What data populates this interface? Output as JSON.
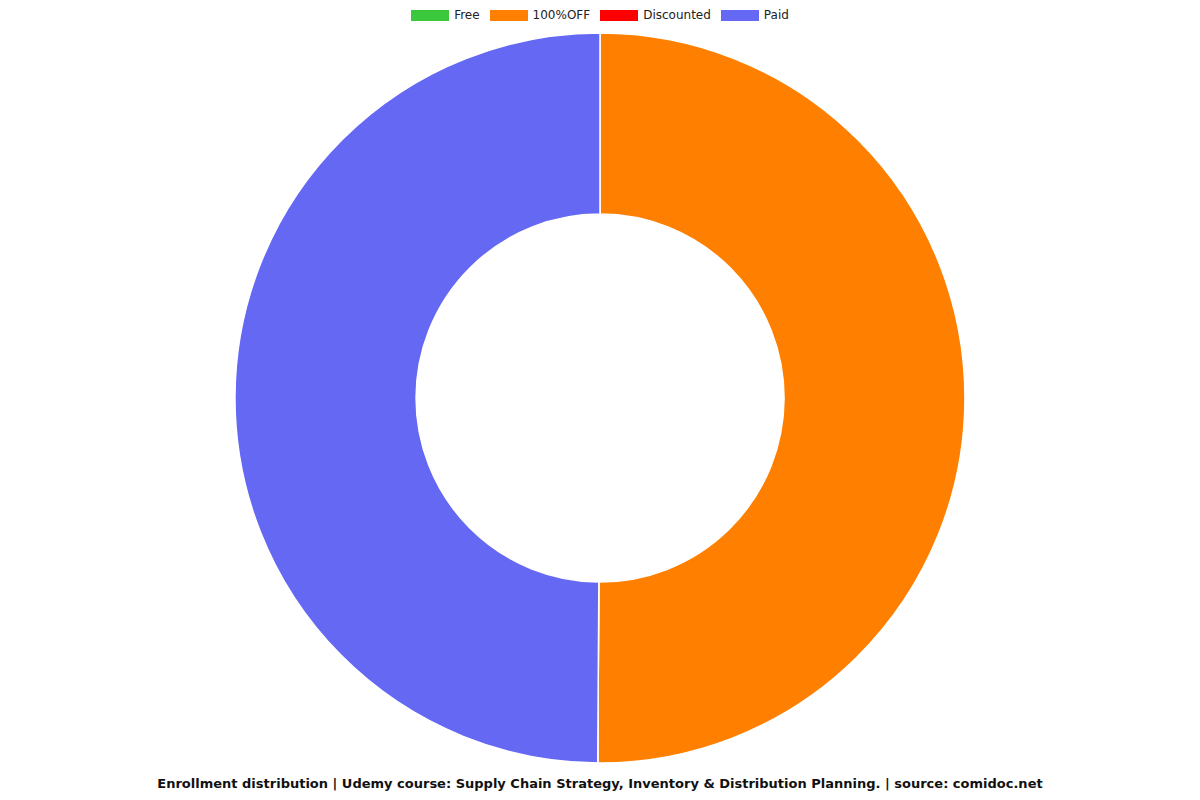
{
  "chart_data": {
    "type": "donut",
    "title": "Enrollment distribution | Udemy course: Supply Chain Strategy, Inventory & Distribution Planning. | source: comidoc.net",
    "categories": [
      "Free",
      "100%OFF",
      "Discounted",
      "Paid"
    ],
    "values": [
      0,
      50.1,
      0,
      49.9
    ],
    "colors": [
      "#3cc83c",
      "#ff8000",
      "#ff0000",
      "#6468f2"
    ],
    "legend": "top"
  }
}
